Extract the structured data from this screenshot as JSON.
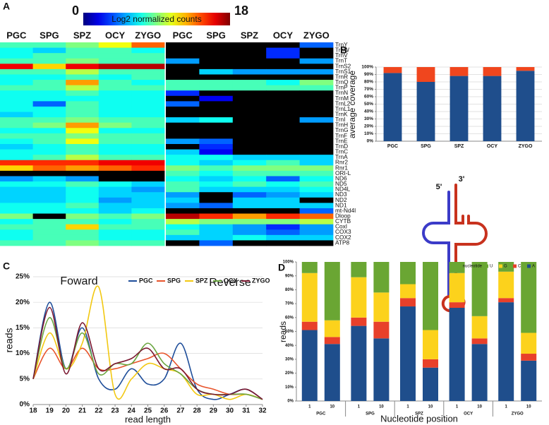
{
  "chart_data": [
    {
      "type": "heatmap",
      "panel": "A",
      "colorbar_label": "Log2 normalized counts",
      "zlim": [
        0,
        18
      ],
      "zticks": [
        0,
        18
      ],
      "columns": [
        "PGC",
        "SPG",
        "SPZ",
        "OCY",
        "ZYGO",
        "PGC",
        "SPG",
        "SPZ",
        "OCY",
        "ZYGO"
      ],
      "rows": [
        "TrnY",
        "TrnW",
        "TrnV",
        "TrnT",
        "TrnS2",
        "TrnS1",
        "TrnR",
        "TrnQ",
        "TrnP",
        "TrnN",
        "TrnM",
        "TrnL2",
        "TrnL1",
        "TrnK",
        "TrnI",
        "TrnH",
        "TrnG",
        "TrnF",
        "TrnE",
        "TrnD",
        "TrnC",
        "TrnA",
        "Rnr2",
        "Rnr1",
        "ORI-L",
        "ND6",
        "ND5",
        "ND4L",
        "ND3",
        "ND2",
        "ND1",
        "mt-Nd4l",
        "Dloop",
        "CYTB",
        "CoxI",
        "COX3",
        "COX2",
        "ATP8"
      ],
      "values": [
        [
          8,
          8,
          9,
          11,
          14,
          null,
          null,
          null,
          null,
          4
        ],
        [
          7,
          6,
          8,
          8,
          7,
          null,
          null,
          null,
          3,
          null
        ],
        [
          7,
          8,
          8,
          8,
          8,
          null,
          null,
          null,
          3,
          null
        ],
        [
          8,
          8,
          9,
          8,
          8,
          5,
          null,
          null,
          null,
          5
        ],
        [
          16,
          12,
          16,
          17,
          17,
          null,
          null,
          null,
          null,
          null
        ],
        [
          8,
          8,
          10,
          8,
          8,
          null,
          6,
          5,
          5,
          5
        ],
        [
          7,
          7,
          8,
          7,
          8,
          null,
          null,
          null,
          null,
          null
        ],
        [
          7,
          8,
          13,
          8,
          7,
          8,
          8,
          8,
          7,
          9
        ],
        [
          8,
          8,
          10,
          8,
          8,
          8,
          8,
          8,
          8,
          8
        ],
        [
          7,
          7,
          8,
          7,
          7,
          3,
          null,
          null,
          null,
          null
        ],
        [
          7,
          7,
          7,
          7,
          7,
          null,
          2,
          null,
          null,
          null
        ],
        [
          7,
          4,
          8,
          7,
          7,
          4,
          null,
          null,
          null,
          null
        ],
        [
          7,
          7,
          8,
          7,
          7,
          null,
          null,
          null,
          null,
          null
        ],
        [
          6,
          7,
          8,
          7,
          7,
          null,
          null,
          null,
          null,
          null
        ],
        [
          8,
          8,
          9,
          8,
          8,
          6,
          7,
          null,
          null,
          5
        ],
        [
          8,
          9,
          13,
          9,
          8,
          null,
          null,
          null,
          null,
          null
        ],
        [
          7,
          7,
          11,
          7,
          7,
          null,
          null,
          null,
          null,
          null
        ],
        [
          8,
          8,
          9,
          8,
          8,
          null,
          null,
          null,
          null,
          null
        ],
        [
          7,
          8,
          11,
          8,
          8,
          5,
          4,
          null,
          null,
          null
        ],
        [
          6,
          7,
          8,
          7,
          7,
          null,
          3,
          null,
          null,
          null
        ],
        [
          7,
          7,
          8,
          7,
          7,
          6,
          2,
          null,
          null,
          null
        ],
        [
          7,
          8,
          10,
          8,
          8,
          7,
          7,
          6,
          6,
          6
        ],
        [
          15,
          15,
          15,
          16,
          16,
          7,
          6,
          7,
          8,
          6
        ],
        [
          12,
          14,
          13,
          14,
          15,
          9,
          8,
          9,
          9,
          9
        ],
        [
          null,
          null,
          null,
          null,
          null,
          8,
          7,
          8,
          8,
          8
        ],
        [
          5,
          6,
          5,
          null,
          null,
          7,
          6,
          7,
          4,
          7
        ],
        [
          7,
          7,
          8,
          7,
          6,
          8,
          7,
          8,
          7,
          8
        ],
        [
          6,
          6,
          7,
          6,
          5,
          8,
          6,
          6,
          6,
          7
        ],
        [
          6,
          6,
          7,
          6,
          6,
          5,
          null,
          4,
          5,
          6
        ],
        [
          6,
          6,
          7,
          5,
          6,
          6,
          null,
          6,
          6,
          null
        ],
        [
          7,
          7,
          8,
          6,
          6,
          5,
          4,
          6,
          6,
          6
        ],
        [
          7,
          7,
          7,
          6,
          7,
          null,
          null,
          null,
          null,
          4
        ],
        [
          9,
          null,
          9,
          8,
          9,
          17,
          15,
          13,
          15,
          14
        ],
        [
          7,
          8,
          8,
          7,
          8,
          10,
          9,
          9,
          9,
          10
        ],
        [
          8,
          8,
          12,
          8,
          8,
          7,
          6,
          5,
          3,
          5
        ],
        [
          7,
          8,
          8,
          7,
          7,
          8,
          6,
          5,
          4,
          5
        ],
        [
          7,
          8,
          8,
          7,
          7,
          6,
          6,
          7,
          6,
          6
        ],
        [
          8,
          8,
          9,
          8,
          8,
          null,
          4,
          null,
          null,
          null
        ]
      ]
    },
    {
      "type": "bar",
      "panel": "B",
      "stacked": true,
      "grid": true,
      "ylabel": "average coverage",
      "categories": [
        "PGC",
        "SPG",
        "SPZ",
        "OCY",
        "ZYGO"
      ],
      "series": [
        {
          "color": "#1f4e8c",
          "values": [
            92,
            80,
            88,
            88,
            95
          ]
        },
        {
          "color": "#f0461e",
          "values": [
            8,
            20,
            12,
            12,
            5
          ]
        }
      ],
      "ylim": [
        0,
        100
      ],
      "yticks": [
        {
          "value": 0,
          "label": "0%"
        },
        {
          "value": 10,
          "label": "10%"
        },
        {
          "value": 20,
          "label": "20%"
        },
        {
          "value": 30,
          "label": "30%"
        },
        {
          "value": 40,
          "label": "40%"
        },
        {
          "value": 50,
          "label": "50%"
        },
        {
          "value": 60,
          "label": "60%"
        },
        {
          "value": 70,
          "label": "70%"
        },
        {
          "value": 80,
          "label": "80%"
        },
        {
          "value": 90,
          "label": "90%"
        },
        {
          "value": 100,
          "label": "100%"
        }
      ]
    },
    {
      "type": "line",
      "panel": "C",
      "grid": true,
      "xlabel": "read length",
      "ylabel": "reads",
      "annotations": [
        "Foward",
        "Reverse"
      ],
      "x": [
        18,
        19,
        20,
        21,
        22,
        23,
        24,
        25,
        26,
        27,
        28,
        29,
        30,
        31,
        32
      ],
      "xlim": [
        18,
        32
      ],
      "xticks": [
        18,
        19,
        20,
        21,
        22,
        23,
        24,
        25,
        26,
        27,
        28,
        29,
        30,
        31,
        32
      ],
      "ylim": [
        0,
        25
      ],
      "yticks": [
        {
          "value": 0,
          "label": "0%"
        },
        {
          "value": 5,
          "label": "5%"
        },
        {
          "value": 10,
          "label": "10%"
        },
        {
          "value": 15,
          "label": "15%"
        },
        {
          "value": 20,
          "label": "20%"
        },
        {
          "value": 25,
          "label": "25%"
        }
      ],
      "series": [
        {
          "name": "PGC",
          "color": "#1f4e9a",
          "values": [
            5,
            20,
            7,
            15,
            5,
            3,
            7,
            4,
            5,
            12,
            3,
            1,
            2,
            3,
            1
          ]
        },
        {
          "name": "SPG",
          "color": "#e8542c",
          "values": [
            5,
            11,
            7,
            11,
            7,
            7,
            8,
            9,
            10,
            7,
            4,
            3,
            2,
            2,
            1
          ]
        },
        {
          "name": "SPZ",
          "color": "#f2c811",
          "values": [
            5,
            14,
            7,
            12,
            23,
            2,
            5,
            8,
            7,
            6,
            2,
            2,
            1,
            2,
            1
          ]
        },
        {
          "name": "OCY",
          "color": "#6aa640",
          "values": [
            5,
            17,
            7,
            14,
            6,
            8,
            8,
            12,
            8,
            6,
            3,
            2,
            2,
            2,
            1
          ]
        },
        {
          "name": "ZYGO",
          "color": "#7b1830",
          "values": [
            5,
            19,
            6,
            16,
            7,
            8,
            9,
            11,
            7,
            7,
            3,
            2,
            2,
            3,
            1
          ]
        }
      ]
    },
    {
      "type": "bar",
      "panel": "D",
      "stacked": true,
      "xlabel": "Nucleotide position",
      "ylabel": "reads",
      "legend_title": "nucleotide",
      "categories": [
        "1",
        "10",
        "1",
        "10",
        "1",
        "10",
        "1",
        "10",
        "1",
        "10"
      ],
      "groups": [
        "PGC",
        "SPG",
        "SPZ",
        "OCY",
        "ZYGO"
      ],
      "ylim": [
        0,
        100
      ],
      "yticks": [
        {
          "value": 0,
          "label": "0%"
        },
        {
          "value": 10,
          "label": "10%"
        },
        {
          "value": 20,
          "label": "20%"
        },
        {
          "value": 30,
          "label": "30%"
        },
        {
          "value": 40,
          "label": "40%"
        },
        {
          "value": 50,
          "label": "50%"
        },
        {
          "value": 60,
          "label": "60%"
        },
        {
          "value": 70,
          "label": "70%"
        },
        {
          "value": 80,
          "label": "80%"
        },
        {
          "value": 90,
          "label": "90%"
        },
        {
          "value": 100,
          "label": "100%"
        }
      ],
      "series": [
        {
          "name": "A",
          "color": "#1f4e8c",
          "values": [
            51,
            41,
            54,
            45,
            68,
            24,
            67,
            41,
            71,
            29
          ]
        },
        {
          "name": "C",
          "color": "#e8402a",
          "values": [
            6,
            5,
            6,
            12,
            6,
            6,
            4,
            4,
            3,
            5
          ]
        },
        {
          "name": "G",
          "color": "#fcd21c",
          "values": [
            35,
            12,
            29,
            21,
            10,
            21,
            21,
            16,
            19,
            15
          ]
        },
        {
          "name": "U",
          "color": "#6aa633",
          "values": [
            8,
            42,
            11,
            22,
            16,
            49,
            8,
            39,
            7,
            51
          ]
        }
      ]
    }
  ],
  "diagram": {
    "labels": [
      "5'",
      "3'"
    ]
  }
}
